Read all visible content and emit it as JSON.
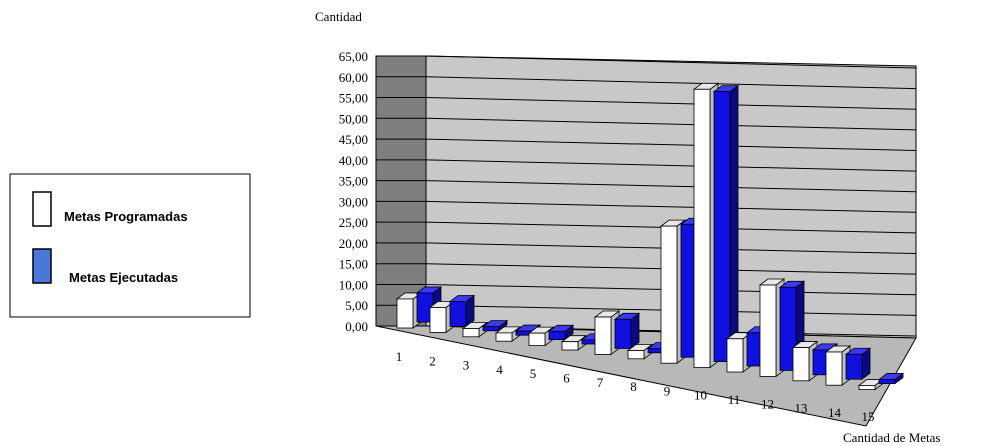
{
  "chart_data": {
    "type": "bar",
    "ylabel": "Cantidad",
    "xlabel": "Cantidad de Metas",
    "categories": [
      "1",
      "2",
      "3",
      "4",
      "5",
      "6",
      "7",
      "8",
      "9",
      "10",
      "11",
      "12",
      "13",
      "14",
      "15"
    ],
    "yticks": [
      "0,00",
      "5,00",
      "10,00",
      "15,00",
      "20,00",
      "25,00",
      "30,00",
      "35,00",
      "40,00",
      "45,00",
      "50,00",
      "55,00",
      "60,00",
      "65,00"
    ],
    "ylim": [
      0,
      65
    ],
    "grid": true,
    "legend_position": "left",
    "series": [
      {
        "name": "Metas Programadas",
        "color": "#ffffff",
        "values": [
          7,
          6,
          2,
          2,
          3,
          2,
          9,
          2,
          33,
          67,
          8,
          22,
          8,
          8,
          1
        ]
      },
      {
        "name": "Metas Ejecutadas",
        "color": "#1010e0",
        "values": [
          7,
          6,
          1,
          1,
          2,
          1,
          7,
          1,
          32,
          65,
          8,
          20,
          6,
          6,
          1
        ]
      }
    ]
  }
}
